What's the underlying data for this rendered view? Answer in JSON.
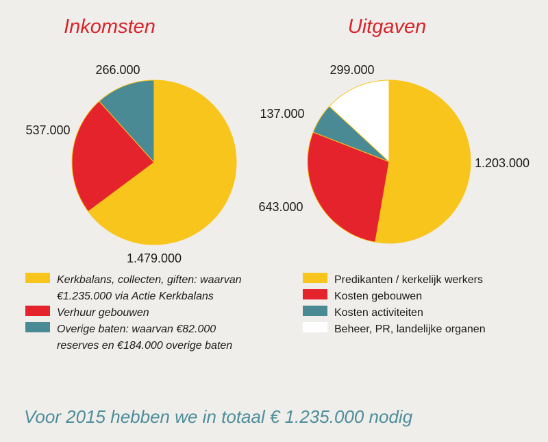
{
  "chart_data": [
    {
      "type": "pie",
      "title": "Inkomsten",
      "categories": [
        "Kerkbalans, collecten, giften",
        "Verhuur gebouwen",
        "Overige baten"
      ],
      "values": [
        1479000,
        537000,
        266000
      ],
      "value_labels": [
        "1.479.000",
        "537.000",
        "266.000"
      ],
      "colors": [
        "#f8c51c",
        "#e4232c",
        "#4a8a94"
      ],
      "legend": [
        {
          "lines": [
            "Kerkbalans, collecten, giften: waarvan",
            "€1.235.000 via Actie Kerkbalans"
          ],
          "color": "#f8c51c"
        },
        {
          "lines": [
            "Verhuur gebouwen"
          ],
          "color": "#e4232c"
        },
        {
          "lines": [
            "Overige baten: waarvan €82.000",
            "reserves en €184.000 overige baten"
          ],
          "color": "#4a8a94"
        }
      ]
    },
    {
      "type": "pie",
      "title": "Uitgaven",
      "categories": [
        "Predikanten / kerkelijk werkers",
        "Kosten gebouwen",
        "Kosten activiteiten",
        "Beheer, PR, landelijke organen"
      ],
      "values": [
        1203000,
        643000,
        137000,
        299000
      ],
      "value_labels": [
        "1.203.000",
        "643.000",
        "137.000",
        "299.000"
      ],
      "colors": [
        "#f8c51c",
        "#e4232c",
        "#4a8a94",
        "#ffffff"
      ],
      "legend": [
        {
          "lines": [
            "Predikanten / kerkelijk werkers"
          ],
          "color": "#f8c51c"
        },
        {
          "lines": [
            "Kosten gebouwen"
          ],
          "color": "#e4232c"
        },
        {
          "lines": [
            "Kosten activiteiten"
          ],
          "color": "#4a8a94"
        },
        {
          "lines": [
            "Beheer, PR, landelijke organen"
          ],
          "color": "#ffffff"
        }
      ]
    }
  ],
  "footer": "Voor 2015 hebben we in totaal € 1.235.000 nodig"
}
